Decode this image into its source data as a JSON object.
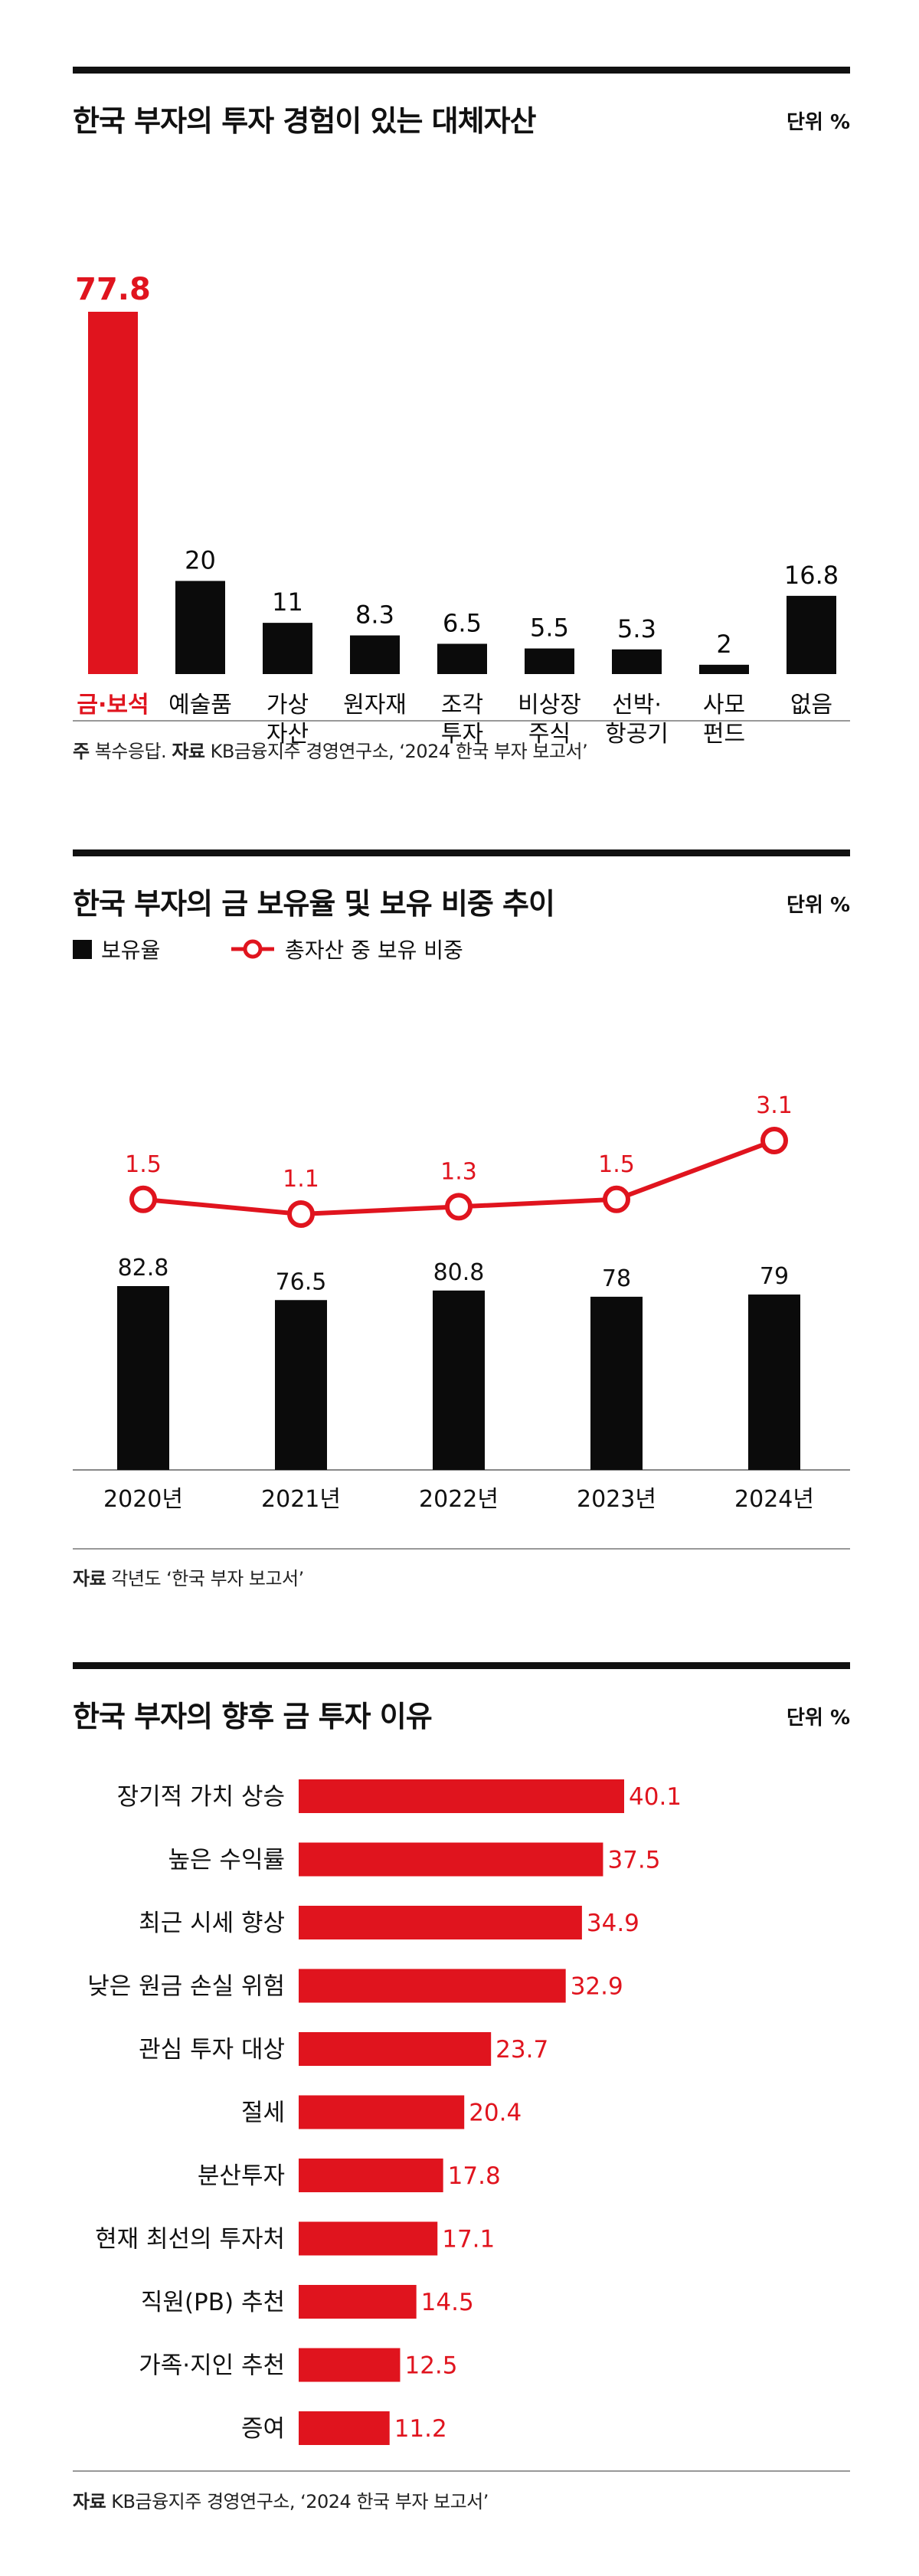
{
  "chart_data": [
    {
      "type": "bar",
      "title": "한국 부자의 투자 경험이 있는 대체자산",
      "unit": "단위 %",
      "categories": [
        "금·보석",
        "예술품",
        "가상\n자산",
        "원자재",
        "조각\n투자",
        "비상장\n주식",
        "선박·\n항공기",
        "사모\n펀드",
        "없음"
      ],
      "values": [
        77.8,
        20,
        11,
        8.3,
        6.5,
        5.5,
        5.3,
        2,
        16.8
      ],
      "value_labels": [
        "77.8",
        "20",
        "11",
        "8.3",
        "6.5",
        "5.5",
        "5.3",
        "2",
        "16.8"
      ],
      "highlight_index": 0,
      "ylim": [
        0,
        77.8
      ],
      "note_bold1": "주",
      "note_text1": " 복수응답. ",
      "note_bold2": "자료",
      "note_text2": " KB금융지주 경영연구소, ‘2024 한국 부자 보고서’"
    },
    {
      "type": "bar",
      "title": "한국 부자의 금 보유율 및 보유 비중 추이",
      "unit": "단위 %",
      "legend_bar": "보유율",
      "legend_line": "총자산 중 보유 비중",
      "categories": [
        "2020년",
        "2021년",
        "2022년",
        "2023년",
        "2024년"
      ],
      "series": [
        {
          "name": "보유율",
          "values": [
            82.8,
            76.5,
            80.8,
            78,
            79
          ],
          "labels": [
            "82.8",
            "76.5",
            "80.8",
            "78",
            "79"
          ]
        },
        {
          "name": "총자산 중 보유 비중",
          "values": [
            1.5,
            1.1,
            1.3,
            1.5,
            3.1
          ],
          "labels": [
            "1.5",
            "1.1",
            "1.3",
            "1.5",
            "3.1"
          ]
        }
      ],
      "note_bold": "자료",
      "note_text": " 각년도 ‘한국 부자 보고서’"
    },
    {
      "type": "bar",
      "orientation": "horizontal",
      "title": "한국 부자의 향후 금 투자 이유",
      "unit": "단위 %",
      "categories": [
        "장기적 가치 상승",
        "높은 수익률",
        "최근 시세 향상",
        "낮은 원금 손실 위험",
        "관심 투자 대상",
        "절세",
        "분산투자",
        "현재 최선의 투자처",
        "직원(PB) 추천",
        "가족·지인 추천",
        "증여"
      ],
      "values": [
        40.1,
        37.5,
        34.9,
        32.9,
        23.7,
        20.4,
        17.8,
        17.1,
        14.5,
        12.5,
        11.2
      ],
      "value_labels": [
        "40.1",
        "37.5",
        "34.9",
        "32.9",
        "23.7",
        "20.4",
        "17.8",
        "17.1",
        "14.5",
        "12.5",
        "11.2"
      ],
      "note_bold": "자료",
      "note_text": " KB금융지주 경영연구소, ‘2024 한국 부자 보고서’"
    }
  ],
  "colors": {
    "accent": "#e0141e",
    "bar": "#0b0b0b",
    "text": "#111111",
    "rule": "#999999"
  }
}
